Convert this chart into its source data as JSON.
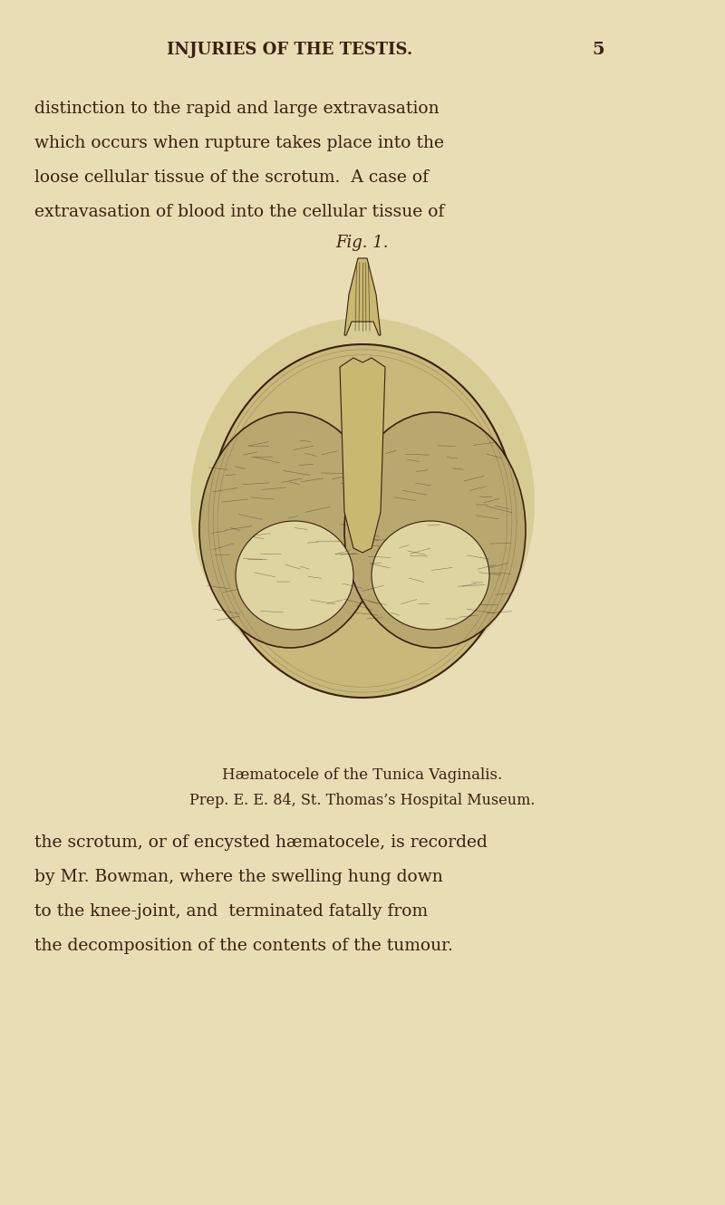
{
  "background_color": "#e8ddb5",
  "page_bg": "#ddd4a0",
  "header_text": "INJURIES OF THE TESTIS.",
  "page_number": "5",
  "para1_lines": [
    "distinction to the rapid and large extravasation",
    "which occurs when rupture takes place into the",
    "loose cellular tissue of the scrotum.  A case of",
    "extravasation of blood into the cellular tissue of"
  ],
  "fig_label": "Fig. 1.",
  "caption_line1": "Hæmatocele of the Tunica Vaginalis.",
  "caption_line2": "Prep. E. E. 84, St. Thomas’s Hospital Museum.",
  "para2_lines": [
    "the scrotum, or of encysted hæmatocele, is recorded",
    "by Mr. Bowman, where the swelling hung down",
    "to the knee-joint, and  terminated fatally from",
    "the decomposition of the contents of the tumour."
  ],
  "text_color": "#3a2010",
  "header_color": "#3a2010",
  "header_fontsize": 13,
  "body_fontsize": 13.5,
  "caption_fontsize": 12,
  "fig_label_fontsize": 13
}
